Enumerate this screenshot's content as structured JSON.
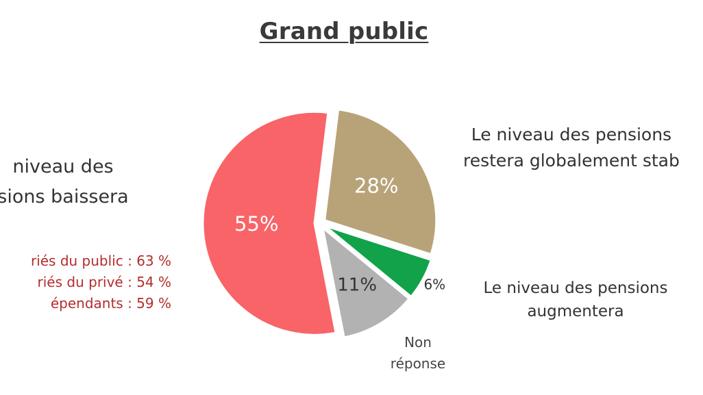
{
  "chart_data": {
    "type": "pie",
    "title": "Grand public",
    "slices": [
      {
        "label": "Le niveau des pensions baissera",
        "value": 55,
        "display": "55%",
        "color": "#f86468"
      },
      {
        "label": "Le niveau des pensions restera globalement stable",
        "value": 28,
        "display": "28%",
        "color": "#b8a378"
      },
      {
        "label": "Le niveau des pensions augmentera",
        "value": 6,
        "display": "6%",
        "color": "#12a24a"
      },
      {
        "label": "Non réponse",
        "value": 11,
        "display": "11%",
        "color": "#b2b2b2"
      }
    ],
    "annotations": {
      "left_title_lines": [
        " niveau des",
        "sions baissera"
      ],
      "left_details": [
        "riés du public : 63 %",
        "riés du privé : 54 %",
        "épendants : 59 %"
      ],
      "right_top_lines": [
        "Le niveau des pensions",
        "restera globalement stab"
      ],
      "right_mid_lines": [
        "Le niveau des pensions",
        "augmentera"
      ],
      "nonreponse_lines": [
        "Non",
        "réponse"
      ]
    }
  }
}
